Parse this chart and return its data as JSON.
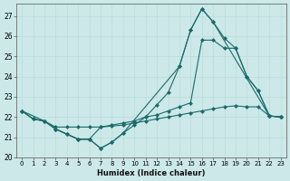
{
  "xlabel": "Humidex (Indice chaleur)",
  "bg_color": "#cce8e8",
  "line_color": "#1a6b6b",
  "xlim": [
    -0.5,
    23.5
  ],
  "ylim": [
    20,
    27.6
  ],
  "yticks": [
    20,
    21,
    22,
    23,
    24,
    25,
    26,
    27
  ],
  "xticks": [
    0,
    1,
    2,
    3,
    4,
    5,
    6,
    7,
    8,
    9,
    10,
    11,
    12,
    13,
    14,
    15,
    16,
    17,
    18,
    19,
    20,
    21,
    22,
    23
  ],
  "line1_x": [
    0,
    1,
    2,
    3,
    4,
    5,
    6,
    7,
    8,
    9,
    10,
    11,
    12,
    13,
    14,
    15,
    16,
    17,
    18,
    19,
    20,
    21,
    22,
    23
  ],
  "line1_y": [
    22.3,
    21.9,
    21.8,
    21.4,
    21.15,
    20.9,
    20.9,
    20.45,
    20.75,
    21.2,
    21.6,
    22.0,
    22.6,
    23.2,
    24.5,
    26.3,
    27.35,
    26.7,
    25.9,
    25.4,
    24.0,
    23.3,
    22.05,
    22.0
  ],
  "line2_x": [
    0,
    1,
    2,
    3,
    4,
    5,
    6,
    7,
    8,
    9,
    10,
    11,
    12,
    13,
    14,
    15,
    16,
    17,
    18,
    19,
    20,
    21,
    22,
    23
  ],
  "line2_y": [
    22.3,
    21.9,
    21.8,
    21.4,
    21.15,
    20.9,
    20.9,
    21.5,
    21.6,
    21.7,
    21.8,
    22.0,
    22.1,
    22.3,
    22.5,
    22.7,
    25.8,
    25.8,
    25.4,
    25.4,
    24.0,
    23.3,
    22.05,
    22.0
  ],
  "line3_x": [
    0,
    1,
    2,
    3,
    4,
    5,
    6,
    7,
    8,
    9,
    10,
    11,
    12,
    13,
    14,
    15,
    16,
    17,
    18,
    19,
    20,
    21,
    22,
    23
  ],
  "line3_y": [
    22.3,
    21.9,
    21.8,
    21.5,
    21.5,
    21.5,
    21.5,
    21.5,
    21.55,
    21.6,
    21.7,
    21.8,
    21.9,
    22.0,
    22.1,
    22.2,
    22.3,
    22.4,
    22.5,
    22.55,
    22.5,
    22.5,
    22.05,
    22.0
  ],
  "line4_x": [
    0,
    2,
    3,
    4,
    5,
    6,
    7,
    8,
    9,
    14,
    15,
    16,
    17,
    22,
    23
  ],
  "line4_y": [
    22.3,
    21.8,
    21.4,
    21.15,
    20.9,
    20.9,
    20.45,
    20.75,
    21.2,
    24.5,
    26.3,
    27.35,
    26.7,
    22.05,
    22.0
  ]
}
